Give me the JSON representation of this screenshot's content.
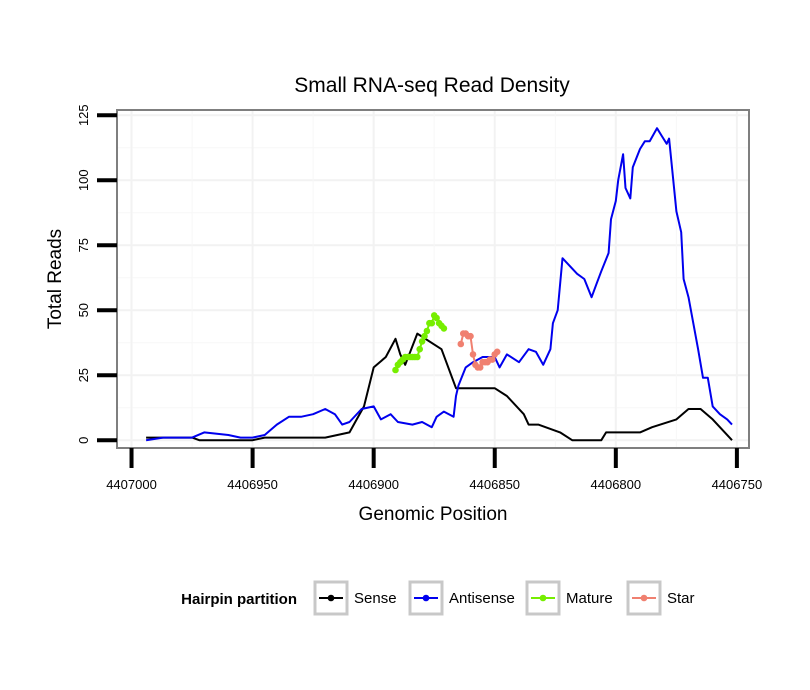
{
  "chart_data": {
    "type": "line",
    "title": "Small RNA-seq Read Density",
    "xlabel": "Genomic Position",
    "ylabel": "Total Reads",
    "xlim": [
      4407006,
      4406745
    ],
    "x_reversed": true,
    "ylim": [
      -3,
      127
    ],
    "x_ticks": [
      4407000,
      4406950,
      4406900,
      4406850,
      4406800,
      4406750
    ],
    "x_tick_labels": [
      "4407000",
      "4406950",
      "4406900",
      "4406850",
      "4406800",
      "4406750"
    ],
    "y_ticks": [
      0,
      25,
      50,
      75,
      100,
      125
    ],
    "y_tick_labels": [
      "0",
      "25",
      "50",
      "75",
      "100",
      "125"
    ],
    "grid": true,
    "legend": {
      "title": "Hairpin partition",
      "position": "bottom",
      "entries": [
        "Sense",
        "Antisense",
        "Mature",
        "Star"
      ]
    },
    "series": [
      {
        "name": "Sense",
        "color": "#000000",
        "markers": false,
        "x": [
          4406994,
          4406975,
          4406972,
          4406950,
          4406945,
          4406920,
          4406910,
          4406907,
          4406904,
          4406900,
          4406895,
          4406891,
          4406889,
          4406887,
          4406882,
          4406872,
          4406866,
          4406850,
          4406845,
          4406838,
          4406836,
          4406832,
          4406823,
          4406818,
          4406812,
          4406806,
          4406804,
          4406790,
          4406785,
          4406775,
          4406770,
          4406765,
          4406760,
          4406755,
          4406752
        ],
        "y": [
          1,
          1,
          0,
          0,
          1,
          1,
          3,
          8,
          13,
          28,
          32,
          39,
          33,
          29,
          41,
          35,
          20,
          20,
          17,
          10,
          6,
          6,
          3,
          0,
          0,
          0,
          3,
          3,
          5,
          8,
          12,
          12,
          8,
          3,
          0
        ]
      },
      {
        "name": "Antisense",
        "color": "#0000ee",
        "markers": false,
        "x": [
          4406994,
          4406987,
          4406975,
          4406970,
          4406960,
          4406955,
          4406950,
          4406945,
          4406940,
          4406935,
          4406930,
          4406925,
          4406920,
          4406916,
          4406913,
          4406910,
          4406905,
          4406900,
          4406897,
          4406893,
          4406890,
          4406884,
          4406880,
          4406876,
          4406874,
          4406871,
          4406867,
          4406866,
          4406865,
          4406862,
          4406859,
          4406855,
          4406850,
          4406848,
          4406845,
          4406840,
          4406836,
          4406833,
          4406830,
          4406827,
          4406826,
          4406824,
          4406822,
          4406820,
          4406818,
          4406816,
          4406813,
          4406810,
          4406808,
          4406806,
          4406803,
          4406802,
          4406800,
          4406799,
          4406797,
          4406796,
          4406794,
          4406793,
          4406790,
          4406788,
          4406786,
          4406783,
          4406781,
          4406779,
          4406778,
          4406775,
          4406773,
          4406772,
          4406770,
          4406768,
          4406766,
          4406764,
          4406762,
          4406760,
          4406757,
          4406754,
          4406752
        ],
        "y": [
          0,
          1,
          1,
          3,
          2,
          1,
          1,
          2,
          6,
          9,
          9,
          10,
          12,
          10,
          6,
          7,
          12,
          13,
          8,
          10,
          7,
          6,
          7,
          5,
          9,
          11,
          9,
          17,
          21,
          28,
          30,
          32,
          32,
          28,
          33,
          30,
          35,
          34,
          29,
          35,
          45,
          50,
          70,
          68,
          66,
          64,
          62,
          55,
          60,
          65,
          72,
          85,
          92,
          100,
          110,
          97,
          93,
          105,
          112,
          115,
          115,
          120,
          117,
          114,
          116,
          88,
          80,
          62,
          55,
          45,
          35,
          24,
          24,
          13,
          10,
          8,
          6
        ]
      },
      {
        "name": "Mature",
        "color": "#76ee00",
        "markers": true,
        "x": [
          4406891,
          4406890,
          4406889,
          4406888,
          4406887,
          4406886,
          4406885,
          4406884,
          4406883,
          4406882,
          4406881,
          4406880,
          4406879,
          4406878,
          4406877,
          4406876,
          4406875,
          4406874,
          4406873,
          4406872,
          4406871
        ],
        "y": [
          27,
          29,
          30,
          31,
          32,
          32,
          32,
          32,
          32,
          32,
          35,
          38,
          40,
          42,
          45,
          45,
          48,
          47,
          45,
          44,
          43
        ]
      },
      {
        "name": "Star",
        "color": "#f08070",
        "markers": true,
        "x": [
          4406864,
          4406863,
          4406862,
          4406861,
          4406860,
          4406859,
          4406858,
          4406857,
          4406856,
          4406855,
          4406854,
          4406853,
          4406852,
          4406851,
          4406850,
          4406849
        ],
        "y": [
          37,
          41,
          41,
          40,
          40,
          33,
          29,
          28,
          28,
          30,
          30,
          30,
          31,
          31,
          33,
          34
        ]
      }
    ]
  }
}
